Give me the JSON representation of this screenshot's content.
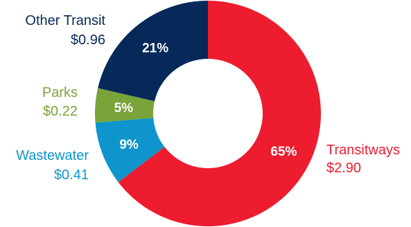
{
  "chart_data": {
    "type": "pie",
    "variant": "donut",
    "slices": [
      {
        "name": "Transitways",
        "value_label": "$2.90",
        "value": 2.9,
        "percent_label": "65%",
        "color": "#ed1c2e"
      },
      {
        "name": "Wastewater",
        "value_label": "$0.41",
        "value": 0.41,
        "percent_label": "9%",
        "color": "#0e96cc"
      },
      {
        "name": "Parks",
        "value_label": "$0.22",
        "value": 0.22,
        "percent_label": "5%",
        "color": "#7aa33a"
      },
      {
        "name": "Other Transit",
        "value_label": "$0.96",
        "value": 0.96,
        "percent_label": "21%",
        "color": "#06295a"
      }
    ],
    "start_angle_deg": 0,
    "direction": "clockwise",
    "legend": "none"
  }
}
